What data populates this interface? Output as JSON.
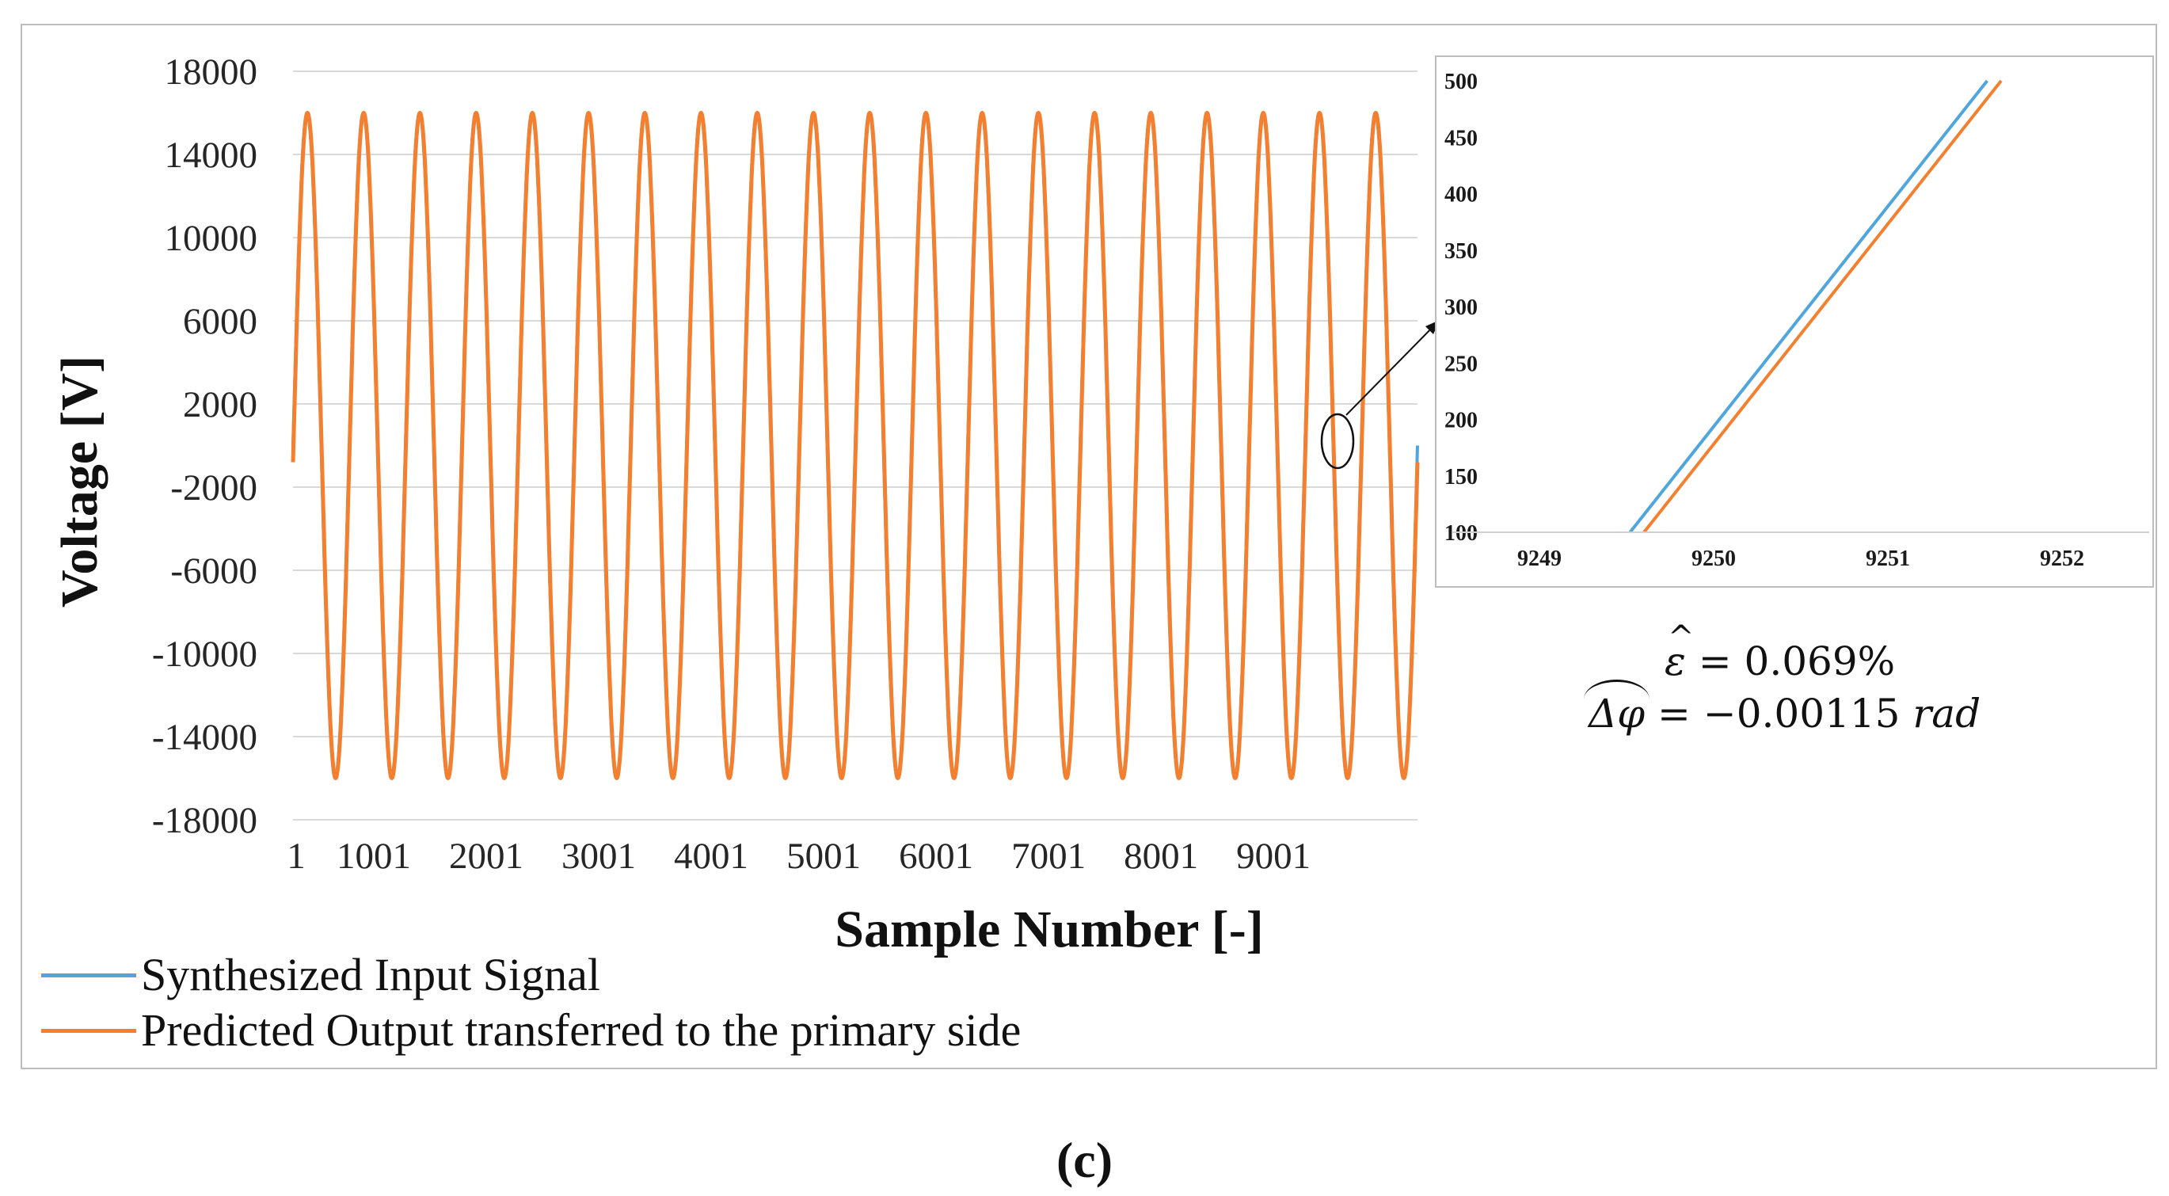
{
  "chart_data": [
    {
      "type": "line",
      "title": "",
      "xlabel": "Sample Number [-]",
      "ylabel": "Voltage [V]",
      "x_tick_labels": [
        "1",
        "1001",
        "2001",
        "3001",
        "4001",
        "5001",
        "6001",
        "7001",
        "8001",
        "9001"
      ],
      "y_tick_labels": [
        "18000",
        "14000",
        "10000",
        "6000",
        "2000",
        "-2000",
        "-6000",
        "-10000",
        "-14000",
        "-18000"
      ],
      "xlim": [
        1,
        10000
      ],
      "ylim": [
        -18000,
        18000
      ],
      "grid": "horizontal",
      "signal": {
        "amplitude": 16000,
        "cycles": 20,
        "samples": 10000
      },
      "series": [
        {
          "name": "Synthesized Input Signal",
          "color": "#4ea6dc"
        },
        {
          "name": "Predicted Output transferred to the primary side",
          "color": "#f4802f"
        }
      ],
      "legend": "bottom-left"
    },
    {
      "type": "line",
      "title": "",
      "x_tick_labels": [
        "9249",
        "9250",
        "9251",
        "9252"
      ],
      "y_tick_labels": [
        "500",
        "450",
        "400",
        "350",
        "300",
        "250",
        "200",
        "150",
        "100"
      ],
      "xlim": [
        9248.5,
        9252.5
      ],
      "ylim": [
        100,
        500
      ],
      "grid": "none",
      "series": [
        {
          "name": "Synthesized Input Signal",
          "color": "#4ea6dc",
          "x": [
            9249.52,
            9251.57
          ],
          "y": [
            100,
            500
          ]
        },
        {
          "name": "Predicted Output transferred to the primary side",
          "color": "#f4802f",
          "x": [
            9249.6,
            9251.65
          ],
          "y": [
            100,
            500
          ]
        }
      ]
    }
  ],
  "metrics": {
    "epsilon_symbol": "ε",
    "epsilon_rest": " = 0.069%",
    "dphi_symbol": "Δφ",
    "dphi_rest": " = −0.00115 ",
    "dphi_unit": "rad"
  },
  "caption": "(c)"
}
